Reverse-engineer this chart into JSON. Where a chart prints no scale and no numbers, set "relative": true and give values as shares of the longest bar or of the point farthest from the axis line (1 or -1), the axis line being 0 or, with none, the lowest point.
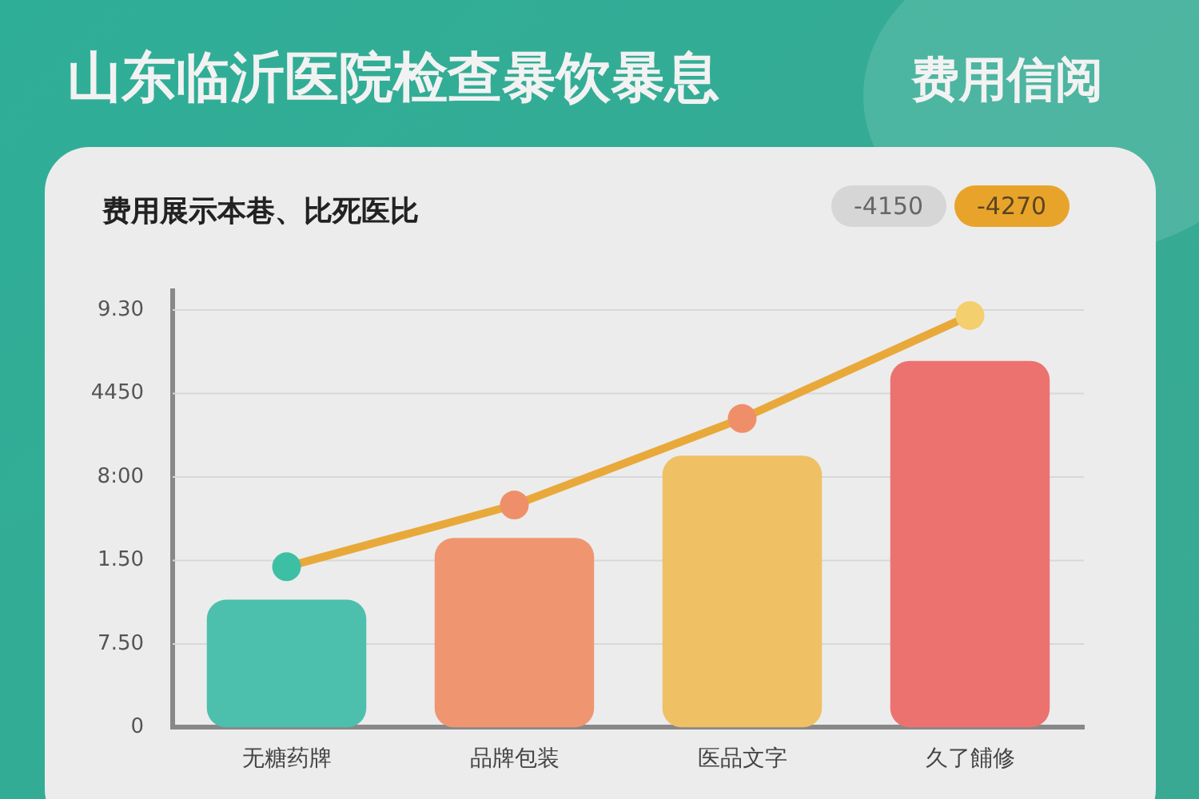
{
  "chart_data": {
    "type": "bar",
    "title": "山东临沂医院检查暴饮暴息",
    "subtitle": "费用展示本巷、比死医比",
    "annotations": [
      "费用信阅",
      "-4150",
      "-4270",
      "0",
      "7.50",
      "1.50",
      "8:00",
      "4450",
      "9.30"
    ],
    "categories": [
      "无糖药牌",
      "品牌包装",
      "医品文字",
      "久了餔修"
    ],
    "series": [
      {
        "colors": [
          "#4cc0ad",
          "#ef9670",
          "#efc064",
          "#ec7270"
        ],
        "values": [
          0.31,
          0.46,
          0.66,
          0.89
        ]
      },
      {
        "type": "line",
        "color": "#e8a93a",
        "colors": [
          "#3dbfa4",
          "#ef8f6a",
          "#ef8f6a",
          "#f3cf6e"
        ],
        "values": [
          0.39,
          0.54,
          0.75,
          1
        ]
      }
    ],
    "relative": true,
    "marker": "circle",
    "line_style": "solid",
    "grid": "y",
    "legend": false
  }
}
